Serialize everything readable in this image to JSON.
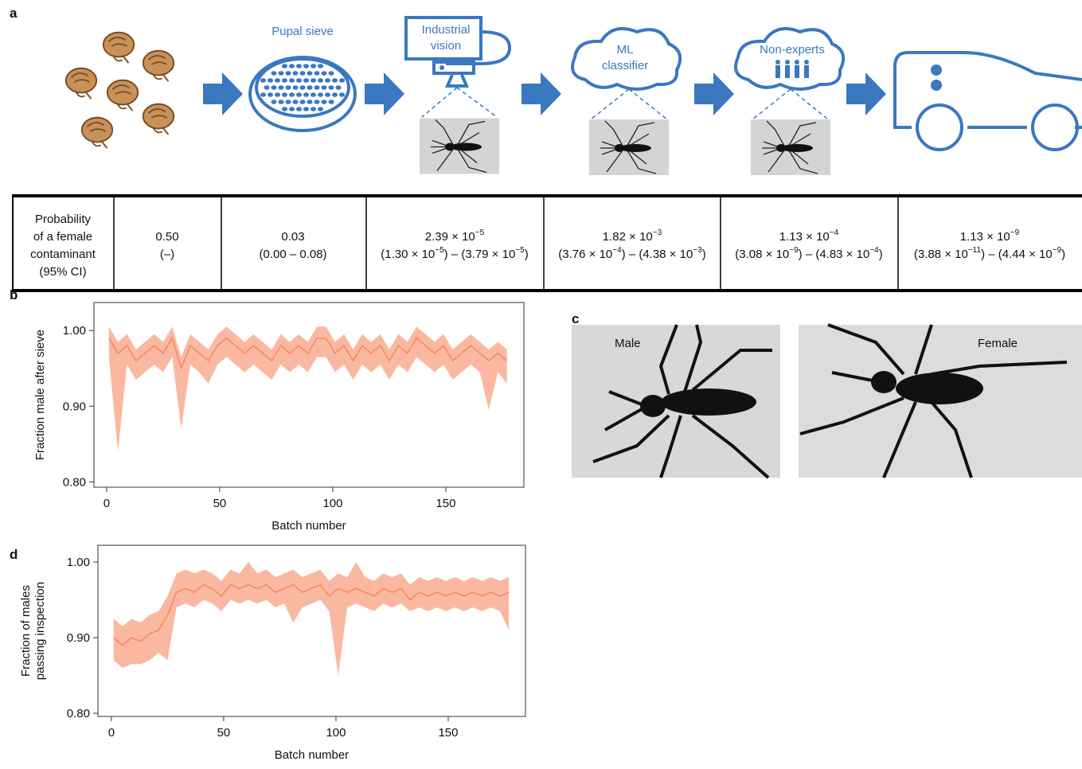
{
  "panel_labels": [
    "a",
    "b",
    "c",
    "d"
  ],
  "diagram": {
    "sieve": "Pupal sieve",
    "vision": [
      "Industrial",
      "vision"
    ],
    "classifier": [
      "ML",
      "classifier"
    ],
    "non_experts": "Non-experts"
  },
  "table": {
    "row_label": [
      "Probability",
      "of a female",
      "contaminant",
      "(95% CI)"
    ],
    "cells": [
      [
        [
          "0.50"
        ],
        [
          "(–)"
        ]
      ],
      [
        [
          "0.03"
        ],
        [
          "(0.00 – 0.08)"
        ]
      ],
      [
        [
          "2.39 × 10",
          "−5"
        ],
        [
          "(1.30 × 10",
          "−5",
          ") – (3.79 × 10",
          "−5",
          ")"
        ]
      ],
      [
        [
          "1.82 × 10",
          "−3"
        ],
        [
          "(3.76 × 10",
          "−4",
          ") – (4.38 × 10",
          "−3",
          ")"
        ]
      ],
      [
        [
          "1.13 × 10",
          "−4"
        ],
        [
          "(3.08 × 10",
          "−9",
          ") – (4.83 × 10",
          "−4",
          ")"
        ]
      ],
      [
        [
          "1.13 × 10",
          "−9"
        ],
        [
          "(3.88 × 10",
          "−11",
          ") – (4.44 × 10",
          "−9",
          ")"
        ]
      ]
    ]
  },
  "photos": [
    "Male",
    "Female"
  ],
  "chart_data": [
    {
      "type": "line",
      "xlabel": "Batch number",
      "ylabel": [
        "Fraction male after sieve"
      ],
      "color": "#ef8a62",
      "band_color": "#fbb8a0",
      "xlim": [
        -5.6,
        184.5
      ],
      "ylim": [
        0.793,
        1.037
      ],
      "xticks": [
        0,
        50,
        100,
        150
      ],
      "yticks": [
        {
          "value": 0.8,
          "label": "0.80"
        },
        {
          "value": 0.9,
          "label": "0.90"
        },
        {
          "value": 1.0,
          "label": "1.00"
        }
      ],
      "x": [
        1,
        5,
        9,
        13,
        17,
        21,
        25,
        29,
        33,
        37,
        41,
        45,
        49,
        53,
        57,
        61,
        65,
        69,
        73,
        77,
        81,
        85,
        89,
        93,
        97,
        101,
        105,
        109,
        113,
        117,
        121,
        125,
        129,
        133,
        137,
        141,
        145,
        149,
        153,
        157,
        161,
        165,
        169,
        173,
        177
      ],
      "values": [
        0.99,
        0.97,
        0.98,
        0.96,
        0.97,
        0.98,
        0.97,
        0.99,
        0.95,
        0.98,
        0.97,
        0.96,
        0.98,
        0.99,
        0.98,
        0.97,
        0.98,
        0.97,
        0.96,
        0.98,
        0.97,
        0.98,
        0.97,
        0.99,
        0.99,
        0.97,
        0.98,
        0.96,
        0.98,
        0.97,
        0.98,
        0.96,
        0.98,
        0.97,
        0.99,
        0.98,
        0.97,
        0.98,
        0.96,
        0.97,
        0.98,
        0.97,
        0.96,
        0.97,
        0.96
      ],
      "lower": [
        0.965,
        0.84,
        0.955,
        0.935,
        0.945,
        0.955,
        0.945,
        0.965,
        0.87,
        0.955,
        0.945,
        0.93,
        0.955,
        0.965,
        0.955,
        0.945,
        0.955,
        0.945,
        0.935,
        0.955,
        0.945,
        0.955,
        0.945,
        0.965,
        0.965,
        0.945,
        0.955,
        0.935,
        0.955,
        0.945,
        0.955,
        0.935,
        0.955,
        0.945,
        0.965,
        0.955,
        0.945,
        0.955,
        0.935,
        0.945,
        0.955,
        0.945,
        0.895,
        0.945,
        0.93
      ],
      "upper": [
        1.005,
        0.985,
        0.995,
        0.975,
        0.985,
        0.995,
        0.985,
        1.005,
        0.965,
        0.995,
        0.985,
        0.975,
        0.995,
        1.005,
        0.995,
        0.985,
        0.995,
        0.985,
        0.975,
        0.995,
        0.985,
        0.995,
        0.985,
        1.005,
        1.005,
        0.985,
        0.995,
        0.975,
        0.995,
        0.985,
        0.995,
        0.975,
        0.995,
        0.985,
        1.005,
        0.995,
        0.985,
        0.995,
        0.975,
        0.985,
        0.995,
        0.985,
        0.975,
        0.985,
        0.975
      ]
    },
    {
      "type": "line",
      "xlabel": "Batch number",
      "ylabel": [
        "Fraction of males",
        "passing inspection"
      ],
      "color": "#ef8a62",
      "band_color": "#fbb8a0",
      "xlim": [
        -6.0,
        184.4
      ],
      "ylim": [
        0.7958,
        1.0221
      ],
      "xticks": [
        0,
        50,
        100,
        150
      ],
      "yticks": [
        {
          "value": 0.8,
          "label": "0.80"
        },
        {
          "value": 0.9,
          "label": "0.90"
        },
        {
          "value": 1.0,
          "label": "1.00"
        }
      ],
      "x": [
        1,
        5,
        9,
        13,
        17,
        21,
        25,
        29,
        33,
        37,
        41,
        45,
        49,
        53,
        57,
        61,
        65,
        69,
        73,
        77,
        81,
        85,
        89,
        93,
        97,
        101,
        105,
        109,
        113,
        117,
        121,
        125,
        129,
        133,
        137,
        141,
        145,
        149,
        153,
        157,
        161,
        165,
        169,
        173,
        177
      ],
      "values": [
        0.9,
        0.89,
        0.9,
        0.895,
        0.905,
        0.91,
        0.93,
        0.96,
        0.965,
        0.96,
        0.97,
        0.965,
        0.955,
        0.97,
        0.965,
        0.97,
        0.965,
        0.97,
        0.96,
        0.965,
        0.97,
        0.96,
        0.965,
        0.97,
        0.955,
        0.965,
        0.96,
        0.965,
        0.96,
        0.955,
        0.965,
        0.96,
        0.965,
        0.95,
        0.96,
        0.955,
        0.96,
        0.955,
        0.96,
        0.955,
        0.96,
        0.955,
        0.96,
        0.955,
        0.96
      ],
      "lower": [
        0.87,
        0.86,
        0.865,
        0.865,
        0.87,
        0.88,
        0.87,
        0.94,
        0.945,
        0.94,
        0.95,
        0.945,
        0.935,
        0.95,
        0.945,
        0.95,
        0.945,
        0.95,
        0.94,
        0.945,
        0.92,
        0.94,
        0.945,
        0.95,
        0.935,
        0.85,
        0.94,
        0.945,
        0.94,
        0.935,
        0.945,
        0.94,
        0.945,
        0.935,
        0.94,
        0.935,
        0.94,
        0.935,
        0.94,
        0.935,
        0.94,
        0.935,
        0.94,
        0.935,
        0.91
      ],
      "upper": [
        0.925,
        0.915,
        0.925,
        0.92,
        0.93,
        0.935,
        0.955,
        0.985,
        0.99,
        0.985,
        0.99,
        0.985,
        0.975,
        0.99,
        0.985,
        1.0,
        0.985,
        0.99,
        0.98,
        0.985,
        0.99,
        0.98,
        0.985,
        0.99,
        0.975,
        0.985,
        0.98,
        1.0,
        0.98,
        0.975,
        0.985,
        0.98,
        0.985,
        0.97,
        0.98,
        0.975,
        0.98,
        0.975,
        0.98,
        0.975,
        0.98,
        0.975,
        0.98,
        0.975,
        0.98
      ]
    }
  ]
}
